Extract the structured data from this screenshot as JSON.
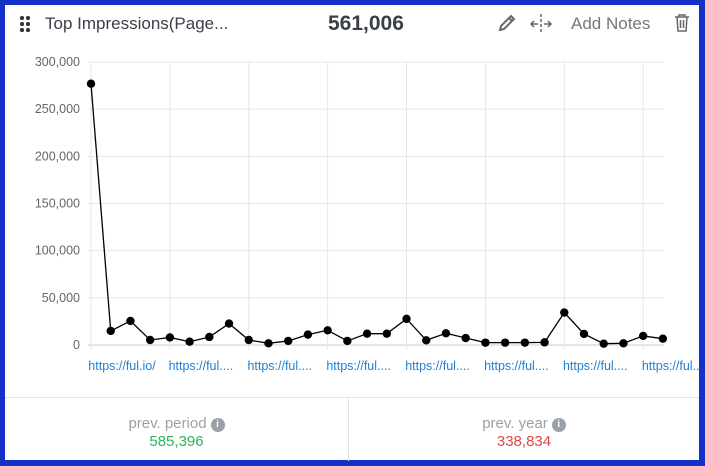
{
  "header": {
    "title": "Top Impressions(Page...",
    "total": "561,006",
    "add_notes_label": "Add Notes",
    "icons": [
      "drag-handle-icon",
      "pencil-icon",
      "move-horizontal-icon",
      "trash-icon"
    ]
  },
  "chart_data": {
    "type": "line",
    "ylim": [
      0,
      300000
    ],
    "yticks": [
      "0",
      "50,000",
      "100,000",
      "150,000",
      "200,000",
      "250,000",
      "300,000"
    ],
    "ytick_values": [
      0,
      50000,
      100000,
      150000,
      200000,
      250000,
      300000
    ],
    "xtick_labels": [
      "https://ful.io/",
      "https://ful....",
      "https://ful....",
      "https://ful....",
      "https://ful....",
      "https://ful....",
      "https://ful....",
      "https://ful...."
    ],
    "xtick_every": 4,
    "values": [
      277000,
      14900,
      25500,
      5300,
      8000,
      3500,
      8500,
      22700,
      5300,
      1800,
      4300,
      11000,
      15600,
      4300,
      12000,
      12000,
      27700,
      5000,
      12400,
      7400,
      2500,
      2500,
      2500,
      2800,
      34400,
      11700,
      1400,
      1800,
      9600,
      6700
    ],
    "grid": true,
    "line_color": "#000000",
    "link_color": "#1f7fd6"
  },
  "footer": {
    "prev_period_label": "prev. period",
    "prev_period_value": "585,396",
    "prev_period_color": "#2eb35a",
    "prev_year_label": "prev. year",
    "prev_year_value": "338,834",
    "prev_year_color": "#e04848",
    "info_glyph": "i"
  }
}
